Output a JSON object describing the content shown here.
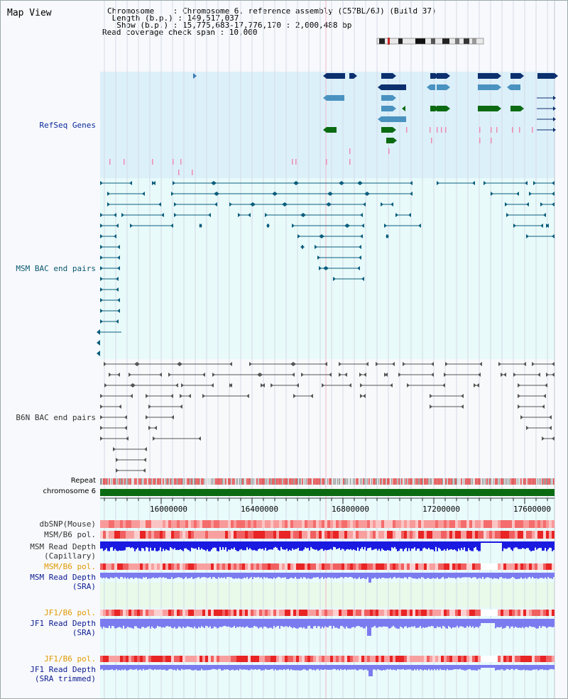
{
  "header": {
    "title": "Map View",
    "chromosome_line": "Chromosome    : Chromosome 6, reference assembly (C57BL/6J) (Build 37)",
    "length_line": " Length (b.p.) : 149,517,037",
    "show_line": "  Show (b.p.) : 15,775,683-17,776,170 : 2,000,488 bp",
    "coverage_line": "Read coverage check span : 10,000"
  },
  "tracks": {
    "refseq": "RefSeq Genes",
    "msm_bac": "MSM BAC end pairs",
    "b6n_bac": "B6N BAC end pairs",
    "repeat": "Repeat",
    "chromosome": "chromosome 6",
    "dbsnp": "dbSNP(Mouse)",
    "msm_pol": "MSM/B6 pol.",
    "msm_depth_cap_1": "MSM Read Depth",
    "msm_depth_cap_2": "(Capillary)",
    "msm_pol_sra": "MSM/B6 pol.",
    "msm_depth_sra_1": "MSM Read Depth",
    "msm_depth_sra_2": "(SRA)",
    "jf1_pol": "JF1/B6 pol.",
    "jf1_depth_1": "JF1 Read Depth",
    "jf1_depth_2": "(SRA)",
    "jf1_pol_trim": "JF1/B6 pol.",
    "jf1_trim_1": "JF1 Read Depth",
    "jf1_trim_2": "(SRA trimmed)"
  },
  "axis": {
    "ticks": [
      "16000000",
      "16400000",
      "16800000",
      "17200000",
      "17600000"
    ]
  },
  "colors": {
    "refseq_bg": "#dcf0fa",
    "gene_dark": "#0c2f6e",
    "gene_mid": "#4a92c0",
    "gene_green": "#0c6b12",
    "bac_msm": "#0a5d7d",
    "bac_b6n": "#555555",
    "chromosome_bar": "#0c6b12",
    "depth_blue": "#1a1ae0",
    "depth_light": "#7b7bf0",
    "pol_red": "#f06060"
  }
}
